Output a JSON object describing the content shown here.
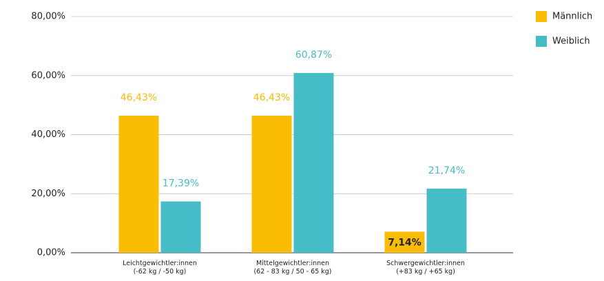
{
  "chart_data": {
    "type": "bar",
    "categories": [
      "Leichtgewichtler:innen\n(-62 kg / -50 kg)",
      "Mittelgewichtler:innen\n(62 - 83 kg / 50 - 65 kg)",
      "Schwergewichtler:innen\n(+83 kg / +65 kg)"
    ],
    "series": [
      {
        "name": "Männlich",
        "color": "#fbbc04",
        "values": [
          46.43,
          46.43,
          7.14
        ],
        "value_labels": [
          "46,43%",
          "46,43%",
          "7,14%"
        ]
      },
      {
        "name": "Weiblich",
        "color": "#46bdc6",
        "values": [
          17.39,
          60.87,
          21.74
        ],
        "value_labels": [
          "17,39%",
          "60,87%",
          "21,74%"
        ]
      }
    ],
    "ylim": [
      0,
      80
    ],
    "yticks": [
      {
        "value": 0,
        "label": "0,00%"
      },
      {
        "value": 20,
        "label": "20,00%"
      },
      {
        "value": 40,
        "label": "40,00%"
      },
      {
        "value": 60,
        "label": "60,00%"
      },
      {
        "value": 80,
        "label": "80,00%"
      }
    ],
    "grid": true,
    "legend": "top-right"
  }
}
